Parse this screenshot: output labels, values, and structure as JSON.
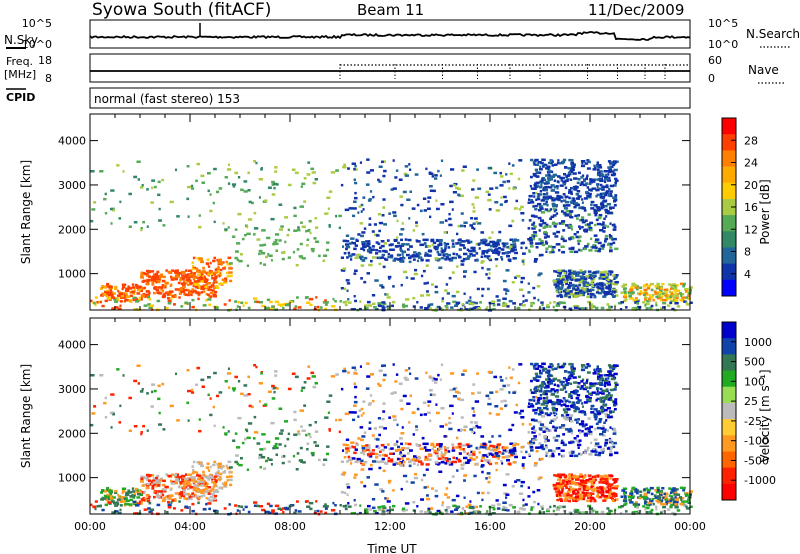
{
  "header": {
    "station": "Syowa South (fitACF)",
    "beam": "Beam 11",
    "date": "11/Dec/2009"
  },
  "labels": {
    "nsky": "N.Sky",
    "nsearch": "N.Search",
    "freq": "Freq.",
    "freq_unit": "[MHz]",
    "nave": "Nave",
    "cpid": "CPID",
    "cpid_text": "normal (fast stereo) 153",
    "yaxis": "Slant Range [km]",
    "xaxis": "Time UT",
    "power_cbar": "Power [dB]",
    "velocity_cbar": "Velocity [m s⁻¹]"
  },
  "noise_axis": {
    "left_ticks": [
      "10^5",
      "10^0"
    ],
    "right_ticks": [
      "10^5",
      "10^0"
    ]
  },
  "freq_axis": {
    "left_ticks": [
      "18",
      "8"
    ],
    "right_ticks": [
      "60",
      "0"
    ]
  },
  "power_colorbar": {
    "ticks": [
      "28",
      "24",
      "20",
      "16",
      "12",
      "8",
      "4"
    ],
    "colors": [
      "#ff0000",
      "#ff4000",
      "#ff8000",
      "#ffaa00",
      "#ffcc00",
      "#aacc44",
      "#55aa55",
      "#338866",
      "#226699",
      "#1133aa",
      "#0000ff"
    ]
  },
  "velocity_colorbar": {
    "ticks": [
      "1000",
      "500",
      "100",
      "25",
      "-25",
      "-100",
      "-500",
      "-1000"
    ],
    "colors": [
      "#0000cc",
      "#1144aa",
      "#337755",
      "#22aa22",
      "#99dd55",
      "#bbbbbb",
      "#ffcc33",
      "#ff9922",
      "#ff6600",
      "#ff2200",
      "#ff0000"
    ]
  },
  "chart_data": [
    {
      "type": "line",
      "name": "noise",
      "series": [
        {
          "name": "N.Sky"
        },
        {
          "name": "N.Search"
        }
      ]
    },
    {
      "type": "line",
      "name": "frequency",
      "series": [
        {
          "name": "Freq."
        },
        {
          "name": "Nave"
        }
      ]
    },
    {
      "type": "scatter",
      "title": "Power [dB]",
      "xlabel": "Time UT",
      "ylabel": "Slant Range [km]",
      "x_ticks": [
        "00:00",
        "04:00",
        "08:00",
        "12:00",
        "16:00",
        "20:00",
        "00:00"
      ],
      "y_ticks": [
        "1000",
        "2000",
        "3000",
        "4000"
      ],
      "xlim": [
        0,
        24
      ],
      "ylim": [
        180,
        4600
      ]
    },
    {
      "type": "scatter",
      "title": "Velocity [m s⁻¹]",
      "xlabel": "Time UT",
      "ylabel": "Slant Range [km]",
      "x_ticks": [
        "00:00",
        "04:00",
        "08:00",
        "12:00",
        "16:00",
        "20:00",
        "00:00"
      ],
      "y_ticks": [
        "1000",
        "2000",
        "3000",
        "4000"
      ],
      "xlim": [
        0,
        24
      ],
      "ylim": [
        180,
        4600
      ]
    }
  ]
}
